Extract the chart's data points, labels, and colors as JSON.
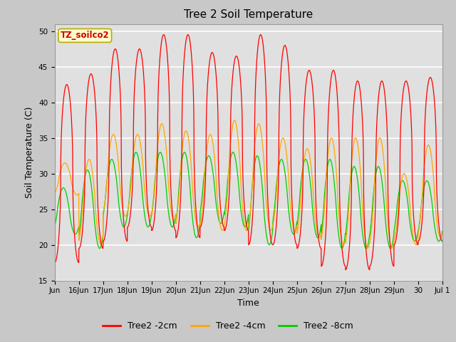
{
  "title": "Tree 2 Soil Temperature",
  "xlabel": "Time",
  "ylabel": "Soil Temperature (C)",
  "ylim": [
    15,
    51
  ],
  "yticks": [
    15,
    20,
    25,
    30,
    35,
    40,
    45,
    50
  ],
  "legend_label": "TZ_soilco2",
  "series_labels": [
    "Tree2 -2cm",
    "Tree2 -4cm",
    "Tree2 -8cm"
  ],
  "series_colors": [
    "#ff0000",
    "#ffa500",
    "#00cc00"
  ],
  "fig_bg_color": "#c8c8c8",
  "plot_bg_color": "#e0e0e0",
  "x_tick_labels": [
    "Jun",
    "16Jun",
    "17Jun",
    "18Jun",
    "19Jun",
    "20Jun",
    "21Jun",
    "22Jun",
    "23Jun",
    "24Jun",
    "25Jun",
    "26Jun",
    "27Jun",
    "28Jun",
    "29Jun",
    "30",
    "Jul 1"
  ],
  "days": 16,
  "daily_min_2cm": [
    17.5,
    19.5,
    20.5,
    22.5,
    22.0,
    21.0,
    22.5,
    22.0,
    20.0,
    20.0,
    19.5,
    17.0,
    16.5,
    17.0,
    20.0,
    20.5
  ],
  "daily_max_2cm": [
    42.5,
    44.0,
    47.5,
    47.5,
    49.5,
    49.5,
    47.0,
    46.5,
    49.5,
    48.0,
    44.5,
    44.5,
    43.0,
    43.0,
    43.0,
    43.5
  ],
  "daily_min_4cm": [
    27.0,
    20.0,
    24.0,
    24.0,
    23.5,
    22.5,
    22.0,
    22.0,
    22.0,
    22.0,
    21.0,
    20.0,
    19.5,
    19.5,
    20.0,
    21.0
  ],
  "daily_max_4cm": [
    31.5,
    32.0,
    35.5,
    35.5,
    37.0,
    36.0,
    35.5,
    37.5,
    37.0,
    35.0,
    33.5,
    35.0,
    35.0,
    35.0,
    30.0,
    34.0
  ],
  "daily_min_8cm": [
    21.5,
    19.5,
    22.5,
    22.5,
    22.5,
    21.0,
    23.0,
    22.5,
    20.0,
    21.5,
    21.0,
    19.5,
    19.5,
    19.5,
    20.5,
    20.5
  ],
  "daily_max_8cm": [
    28.0,
    30.5,
    32.0,
    33.0,
    33.0,
    33.0,
    32.5,
    33.0,
    32.5,
    32.0,
    32.0,
    32.0,
    31.0,
    31.0,
    29.0,
    29.0
  ],
  "pts_per_day": 144
}
